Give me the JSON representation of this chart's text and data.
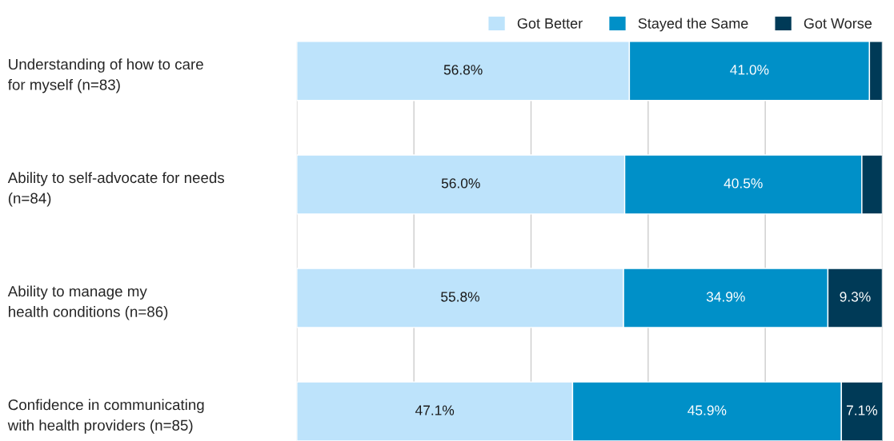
{
  "chart_data": {
    "type": "bar",
    "orientation": "horizontal",
    "stacked": true,
    "categories": [
      "Understanding of how to care\nfor myself (n=83)",
      "Ability to self-advocate for needs\n(n=84)",
      "Ability to manage my\nhealth conditions (n=86)",
      "Confidence in communicating\nwith health providers (n=85)"
    ],
    "series": [
      {
        "name": "Got Better",
        "color": "#bde3fb",
        "values": [
          56.8,
          56.0,
          55.8,
          47.1
        ],
        "value_labels": [
          "56.8%",
          "56.0%",
          "55.8%",
          "47.1%"
        ]
      },
      {
        "name": "Stayed the Same",
        "color": "#0090c8",
        "values": [
          41.0,
          40.5,
          34.9,
          45.9
        ],
        "value_labels": [
          "41.0%",
          "40.5%",
          "34.9%",
          "45.9%"
        ]
      },
      {
        "name": "Got Worse",
        "color": "#003a57",
        "values": [
          2.2,
          3.5,
          9.3,
          7.1
        ],
        "value_labels": [
          null,
          null,
          "9.3%",
          "7.1%"
        ]
      }
    ],
    "xlim": [
      0,
      100
    ],
    "xticks": [
      {
        "value": 0,
        "label": null
      },
      {
        "value": 20,
        "label": null
      },
      {
        "value": 40,
        "label": null
      },
      {
        "value": 60,
        "label": null
      },
      {
        "value": 80,
        "label": null
      },
      {
        "value": 100,
        "label": null
      }
    ],
    "grid": "x",
    "legend": "top right",
    "tick_labels": "y"
  }
}
